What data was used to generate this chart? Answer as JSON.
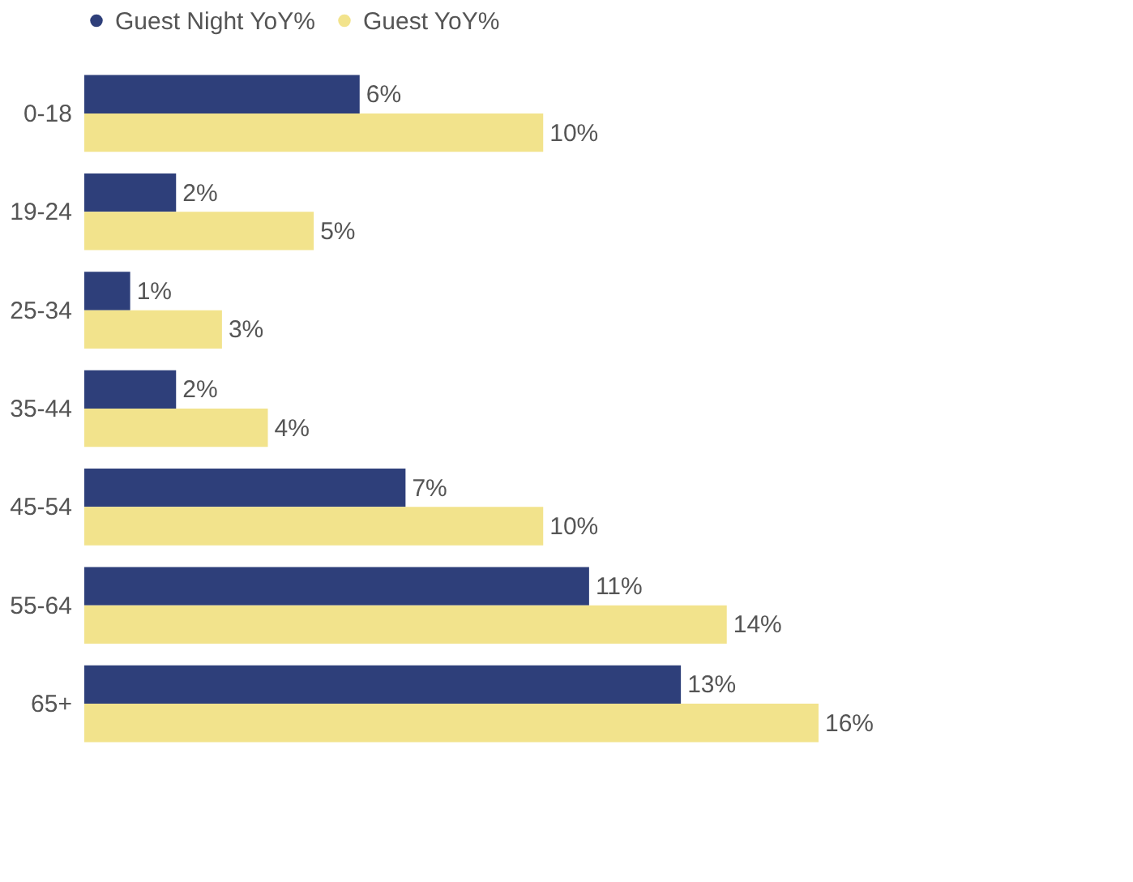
{
  "chart_data": {
    "type": "bar",
    "orientation": "horizontal",
    "categories": [
      "0-18",
      "19-24",
      "25-34",
      "35-44",
      "45-54",
      "55-64",
      "65+"
    ],
    "series": [
      {
        "name": "Guest Night YoY%",
        "color": "#2e3f7a",
        "values": [
          6,
          2,
          1,
          2,
          7,
          11,
          13
        ],
        "value_labels": [
          "6%",
          "2%",
          "1%",
          "2%",
          "7%",
          "11%",
          "13%"
        ]
      },
      {
        "name": "Guest YoY%",
        "color": "#f2e38c",
        "values": [
          10,
          5,
          3,
          4,
          10,
          14,
          16
        ],
        "value_labels": [
          "10%",
          "5%",
          "3%",
          "4%",
          "10%",
          "14%",
          "16%"
        ]
      }
    ],
    "legend": "top left"
  }
}
